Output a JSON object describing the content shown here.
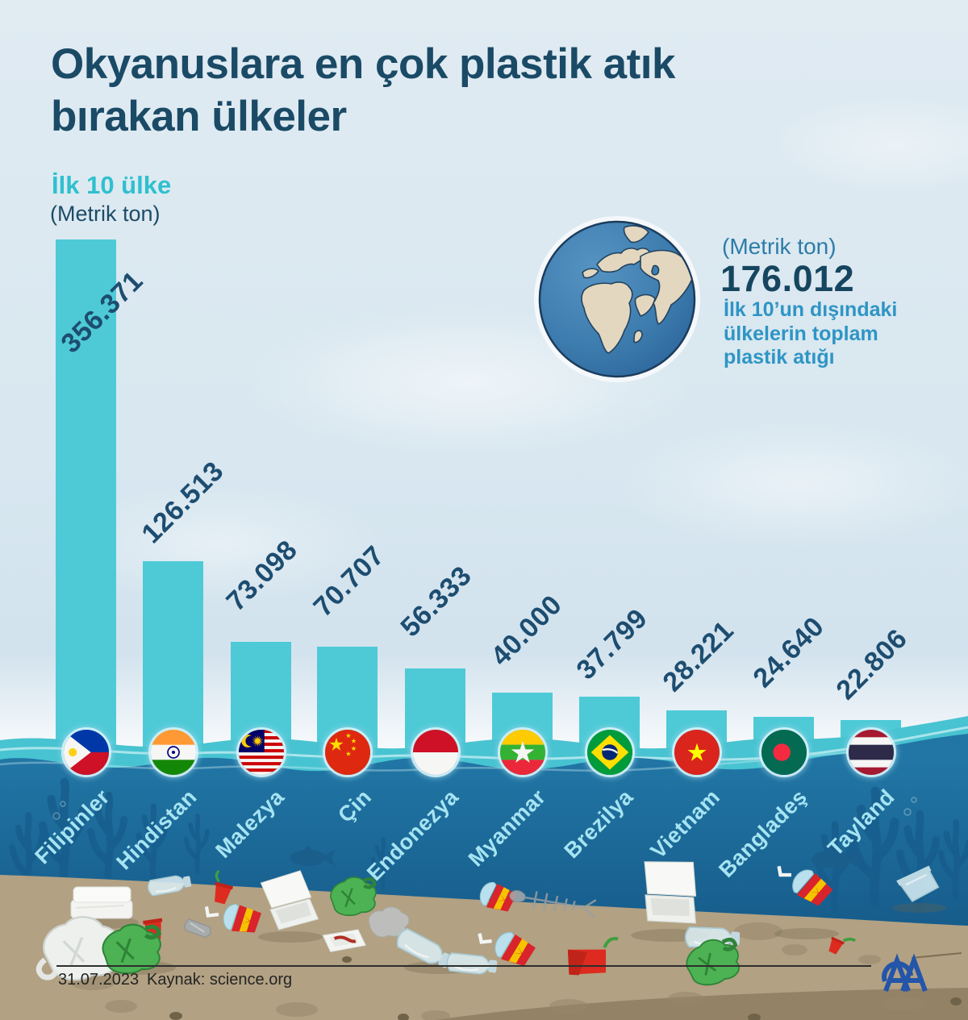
{
  "title": {
    "line1": "Okyanuslara en çok plastik atık",
    "line2": "bırakan ülkeler"
  },
  "subtitle": {
    "label": "İlk 10 ülke",
    "unit": "(Metrik ton)"
  },
  "aside": {
    "unit": "(Metrik ton)",
    "value": "176.012",
    "description": "İlk 10’un dışındaki ülkelerin toplam plastik atığı",
    "desc_line1": "İlk 10’un dışındaki",
    "desc_line2": "ülkelerin toplam",
    "desc_line3": "plastik atığı"
  },
  "chart_data": {
    "type": "bar",
    "title": "Okyanuslara en çok plastik atık bırakan ülkeler",
    "subtitle": "İlk 10 ülke",
    "unit": "Metrik ton",
    "categories": [
      "Filipinler",
      "Hindistan",
      "Malezya",
      "Çin",
      "Endonezya",
      "Myanmar",
      "Brezilya",
      "Vietnam",
      "Bangladeş",
      "Tayland"
    ],
    "values": [
      356371,
      126513,
      73098,
      70707,
      56333,
      40000,
      37799,
      28221,
      24640,
      22806
    ],
    "bars": [
      {
        "label": "Filipinler",
        "value": 356371,
        "value_label": "356.371",
        "flag": "philippines-flag"
      },
      {
        "label": "Hindistan",
        "value": 126513,
        "value_label": "126.513",
        "flag": "india-flag"
      },
      {
        "label": "Malezya",
        "value": 73098,
        "value_label": "73.098",
        "flag": "malaysia-flag"
      },
      {
        "label": "Çin",
        "value": 70707,
        "value_label": "70.707",
        "flag": "china-flag"
      },
      {
        "label": "Endonezya",
        "value": 56333,
        "value_label": "56.333",
        "flag": "indonesia-flag"
      },
      {
        "label": "Myanmar",
        "value": 40000,
        "value_label": "40.000",
        "flag": "myanmar-flag"
      },
      {
        "label": "Brezilya",
        "value": 37799,
        "value_label": "37.799",
        "flag": "brazil-flag"
      },
      {
        "label": "Vietnam",
        "value": 28221,
        "value_label": "28.221",
        "flag": "vietnam-flag"
      },
      {
        "label": "Bangladeş",
        "value": 24640,
        "value_label": "24.640",
        "flag": "bangladesh-flag"
      },
      {
        "label": "Tayland",
        "value": 22806,
        "value_label": "22.806",
        "flag": "thailand-flag"
      }
    ],
    "annotation": {
      "value": "176.012",
      "text": "İlk 10’un dışındaki ülkelerin toplam plastik atığı",
      "unit": "Metrik ton"
    },
    "legend": "none",
    "grid": false
  },
  "footer": {
    "date": "31.07.2023",
    "source": "Kaynak: science.org",
    "logo": "AA"
  },
  "colors": {
    "bar": "#4ecad7",
    "title": "#1a4a66",
    "subtitle_teal": "#2fc0cf",
    "value_label": "#1d4d70",
    "country_label": "#a6e4f2",
    "water_top": "#2176a5",
    "water_deep": "#114e7d",
    "sand": "#b2a183",
    "aside_value": "#16455f",
    "aside_desc": "#2e95c5",
    "logo_blue": "#2355a9"
  }
}
